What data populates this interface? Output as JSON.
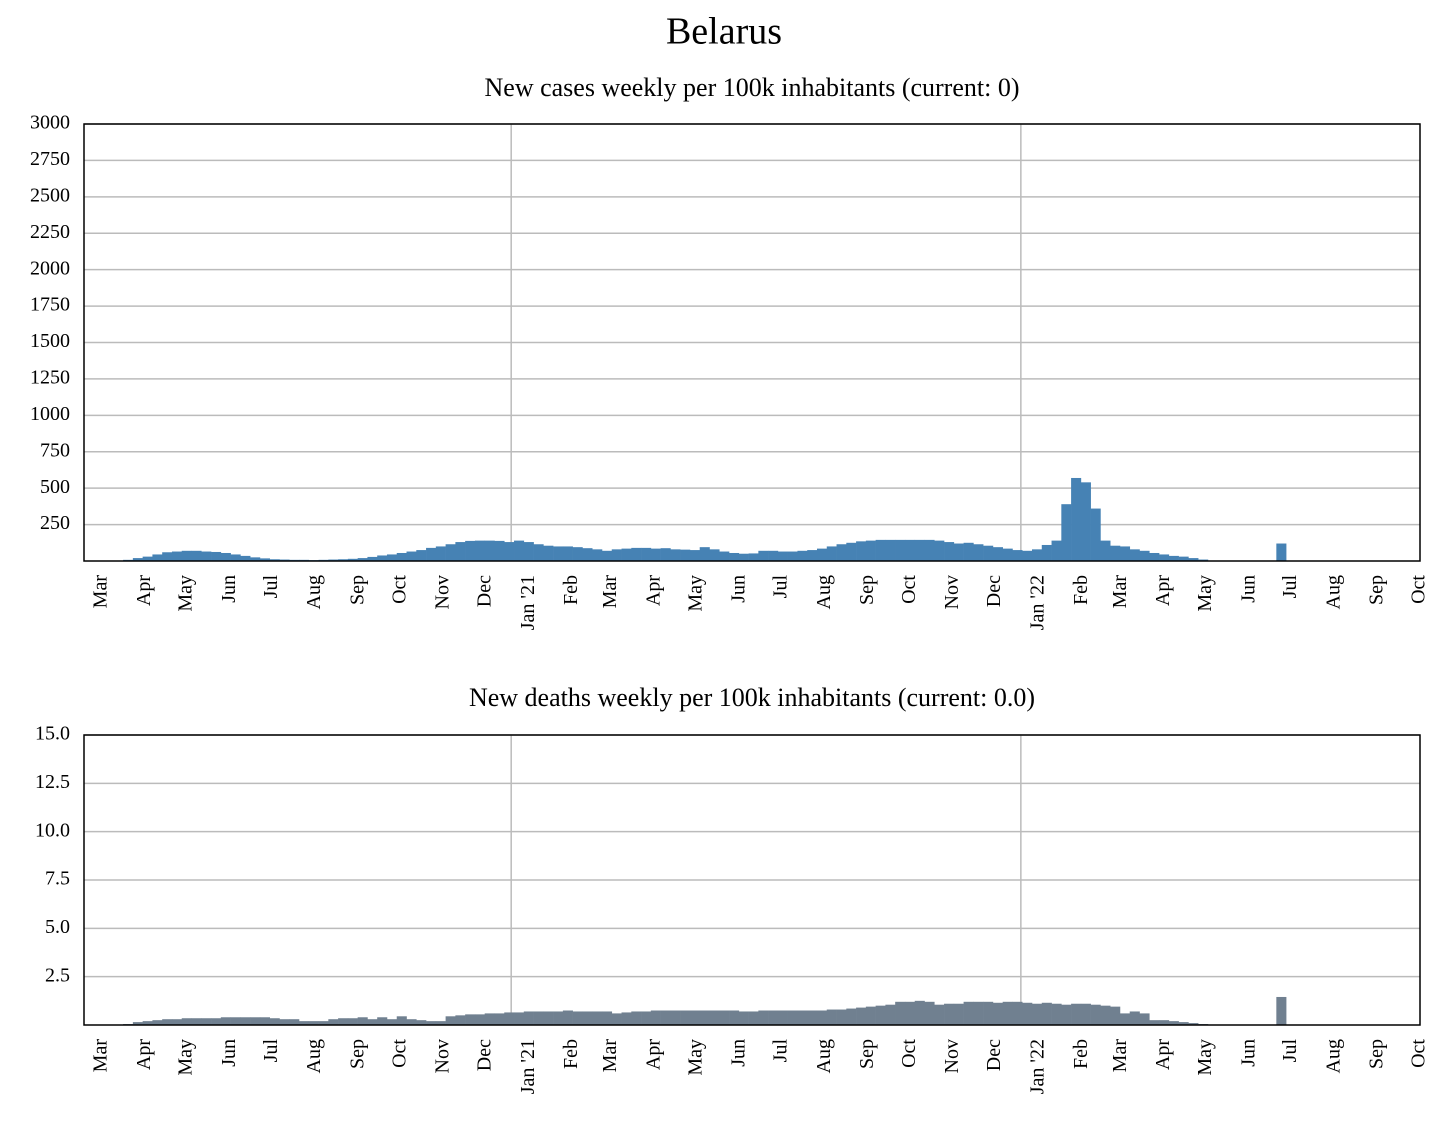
{
  "title": "Belarus",
  "chart_data": [
    {
      "type": "bar",
      "title": "New cases weekly per 100k inhabitants (current: 0)",
      "color": "#4682b4",
      "ylim": [
        0,
        3000
      ],
      "yticks": [
        250,
        500,
        750,
        1000,
        1250,
        1500,
        1750,
        2000,
        2250,
        2500,
        2750,
        3000
      ],
      "grid": true,
      "xlim": [
        0,
        136.7
      ],
      "xticks": [
        {
          "value": 0,
          "label": "Mar"
        },
        {
          "value": 4.43,
          "label": "Apr"
        },
        {
          "value": 8.71,
          "label": "May"
        },
        {
          "value": 13.14,
          "label": "Jun"
        },
        {
          "value": 17.43,
          "label": "Jul"
        },
        {
          "value": 21.86,
          "label": "Aug"
        },
        {
          "value": 26.29,
          "label": "Sep"
        },
        {
          "value": 30.57,
          "label": "Oct"
        },
        {
          "value": 35,
          "label": "Nov"
        },
        {
          "value": 39.29,
          "label": "Dec"
        },
        {
          "value": 43.71,
          "label": "Jan '21"
        },
        {
          "value": 48.14,
          "label": "Feb"
        },
        {
          "value": 52.14,
          "label": "Mar"
        },
        {
          "value": 56.57,
          "label": "Apr"
        },
        {
          "value": 60.86,
          "label": "May"
        },
        {
          "value": 65.29,
          "label": "Jun"
        },
        {
          "value": 69.57,
          "label": "Jul"
        },
        {
          "value": 74,
          "label": "Aug"
        },
        {
          "value": 78.43,
          "label": "Sep"
        },
        {
          "value": 82.71,
          "label": "Oct"
        },
        {
          "value": 87.14,
          "label": "Nov"
        },
        {
          "value": 91.43,
          "label": "Dec"
        },
        {
          "value": 95.86,
          "label": "Jan '22"
        },
        {
          "value": 100.29,
          "label": "Feb"
        },
        {
          "value": 104.29,
          "label": "Mar"
        },
        {
          "value": 108.71,
          "label": "Apr"
        },
        {
          "value": 113,
          "label": "May"
        },
        {
          "value": 117.43,
          "label": "Jun"
        },
        {
          "value": 121.71,
          "label": "Jul"
        },
        {
          "value": 126.14,
          "label": "Aug"
        },
        {
          "value": 130.57,
          "label": "Sep"
        },
        {
          "value": 134.86,
          "label": "Oct"
        }
      ],
      "x": [
        0,
        1,
        2,
        3,
        4,
        5,
        6,
        7,
        8,
        9,
        10,
        11,
        12,
        13,
        14,
        15,
        16,
        17,
        18,
        19,
        20,
        21,
        22,
        23,
        24,
        25,
        26,
        27,
        28,
        29,
        30,
        31,
        32,
        33,
        34,
        35,
        36,
        37,
        38,
        39,
        40,
        41,
        42,
        43,
        44,
        45,
        46,
        47,
        48,
        49,
        50,
        51,
        52,
        53,
        54,
        55,
        56,
        57,
        58,
        59,
        60,
        61,
        62,
        63,
        64,
        65,
        66,
        67,
        68,
        69,
        70,
        71,
        72,
        73,
        74,
        75,
        76,
        77,
        78,
        79,
        80,
        81,
        82,
        83,
        84,
        85,
        86,
        87,
        88,
        89,
        90,
        91,
        92,
        93,
        94,
        95,
        96,
        97,
        98,
        99,
        100,
        101,
        102,
        103,
        104,
        105,
        106,
        107,
        108,
        109,
        110,
        111,
        112,
        113,
        114,
        115,
        116,
        117,
        118,
        119,
        120,
        121,
        122,
        123,
        124,
        125,
        126,
        127,
        128,
        129,
        130,
        131,
        132,
        133,
        134,
        135,
        136
      ],
      "values": [
        0,
        0,
        1,
        3,
        8,
        20,
        30,
        45,
        60,
        65,
        70,
        70,
        65,
        62,
        55,
        45,
        35,
        25,
        18,
        12,
        10,
        8,
        8,
        6,
        8,
        10,
        12,
        15,
        20,
        28,
        38,
        45,
        55,
        65,
        75,
        90,
        100,
        115,
        130,
        138,
        140,
        140,
        138,
        130,
        140,
        130,
        115,
        105,
        100,
        100,
        95,
        88,
        80,
        70,
        80,
        85,
        90,
        90,
        85,
        88,
        80,
        78,
        75,
        95,
        80,
        65,
        55,
        50,
        52,
        70,
        70,
        65,
        65,
        70,
        75,
        85,
        100,
        115,
        125,
        135,
        140,
        145,
        145,
        145,
        145,
        145,
        145,
        140,
        130,
        120,
        125,
        115,
        105,
        95,
        85,
        75,
        70,
        80,
        110,
        140,
        390,
        570,
        540,
        360,
        140,
        105,
        100,
        80,
        70,
        55,
        45,
        35,
        30,
        20,
        10,
        0,
        0,
        0,
        0,
        0,
        0,
        0,
        120,
        0,
        0,
        0,
        0,
        0,
        0,
        0,
        0,
        0,
        0,
        0,
        0,
        0,
        0
      ]
    },
    {
      "type": "bar",
      "title": "New deaths weekly per 100k inhabitants (current: 0.0)",
      "color": "#708090",
      "ylim": [
        0,
        15
      ],
      "yticks": [
        2.5,
        {
          "value": 5,
          "label": "5.0"
        },
        7.5,
        {
          "value": 10,
          "label": "10.0"
        },
        12.5,
        {
          "value": 15,
          "label": "15.0"
        }
      ],
      "grid": true,
      "xlim": [
        0,
        136.7
      ],
      "xticks": [
        {
          "value": 0,
          "label": "Mar"
        },
        {
          "value": 4.43,
          "label": "Apr"
        },
        {
          "value": 8.71,
          "label": "May"
        },
        {
          "value": 13.14,
          "label": "Jun"
        },
        {
          "value": 17.43,
          "label": "Jul"
        },
        {
          "value": 21.86,
          "label": "Aug"
        },
        {
          "value": 26.29,
          "label": "Sep"
        },
        {
          "value": 30.57,
          "label": "Oct"
        },
        {
          "value": 35,
          "label": "Nov"
        },
        {
          "value": 39.29,
          "label": "Dec"
        },
        {
          "value": 43.71,
          "label": "Jan '21"
        },
        {
          "value": 48.14,
          "label": "Feb"
        },
        {
          "value": 52.14,
          "label": "Mar"
        },
        {
          "value": 56.57,
          "label": "Apr"
        },
        {
          "value": 60.86,
          "label": "May"
        },
        {
          "value": 65.29,
          "label": "Jun"
        },
        {
          "value": 69.57,
          "label": "Jul"
        },
        {
          "value": 74,
          "label": "Aug"
        },
        {
          "value": 78.43,
          "label": "Sep"
        },
        {
          "value": 82.71,
          "label": "Oct"
        },
        {
          "value": 87.14,
          "label": "Nov"
        },
        {
          "value": 91.43,
          "label": "Dec"
        },
        {
          "value": 95.86,
          "label": "Jan '22"
        },
        {
          "value": 100.29,
          "label": "Feb"
        },
        {
          "value": 104.29,
          "label": "Mar"
        },
        {
          "value": 108.71,
          "label": "Apr"
        },
        {
          "value": 113,
          "label": "May"
        },
        {
          "value": 117.43,
          "label": "Jun"
        },
        {
          "value": 121.71,
          "label": "Jul"
        },
        {
          "value": 126.14,
          "label": "Aug"
        },
        {
          "value": 130.57,
          "label": "Sep"
        },
        {
          "value": 134.86,
          "label": "Oct"
        }
      ],
      "x": [
        0,
        1,
        2,
        3,
        4,
        5,
        6,
        7,
        8,
        9,
        10,
        11,
        12,
        13,
        14,
        15,
        16,
        17,
        18,
        19,
        20,
        21,
        22,
        23,
        24,
        25,
        26,
        27,
        28,
        29,
        30,
        31,
        32,
        33,
        34,
        35,
        36,
        37,
        38,
        39,
        40,
        41,
        42,
        43,
        44,
        45,
        46,
        47,
        48,
        49,
        50,
        51,
        52,
        53,
        54,
        55,
        56,
        57,
        58,
        59,
        60,
        61,
        62,
        63,
        64,
        65,
        66,
        67,
        68,
        69,
        70,
        71,
        72,
        73,
        74,
        75,
        76,
        77,
        78,
        79,
        80,
        81,
        82,
        83,
        84,
        85,
        86,
        87,
        88,
        89,
        90,
        91,
        92,
        93,
        94,
        95,
        96,
        97,
        98,
        99,
        100,
        101,
        102,
        103,
        104,
        105,
        106,
        107,
        108,
        109,
        110,
        111,
        112,
        113,
        114,
        115,
        116,
        117,
        118,
        119,
        120,
        121,
        122,
        123,
        124,
        125,
        126,
        127,
        128,
        129,
        130,
        131,
        132,
        133,
        134,
        135,
        136
      ],
      "values": [
        0,
        0,
        0,
        0,
        0.05,
        0.15,
        0.2,
        0.25,
        0.3,
        0.3,
        0.35,
        0.35,
        0.35,
        0.35,
        0.4,
        0.4,
        0.4,
        0.4,
        0.4,
        0.35,
        0.3,
        0.3,
        0.2,
        0.2,
        0.2,
        0.3,
        0.35,
        0.35,
        0.4,
        0.3,
        0.4,
        0.3,
        0.45,
        0.3,
        0.25,
        0.2,
        0.2,
        0.45,
        0.5,
        0.55,
        0.55,
        0.6,
        0.6,
        0.65,
        0.65,
        0.7,
        0.7,
        0.7,
        0.7,
        0.75,
        0.7,
        0.7,
        0.7,
        0.7,
        0.6,
        0.65,
        0.7,
        0.7,
        0.75,
        0.75,
        0.75,
        0.75,
        0.75,
        0.75,
        0.75,
        0.75,
        0.75,
        0.7,
        0.7,
        0.75,
        0.75,
        0.75,
        0.75,
        0.75,
        0.75,
        0.75,
        0.8,
        0.8,
        0.85,
        0.9,
        0.95,
        1.0,
        1.05,
        1.2,
        1.2,
        1.25,
        1.2,
        1.05,
        1.1,
        1.1,
        1.2,
        1.2,
        1.2,
        1.15,
        1.2,
        1.2,
        1.15,
        1.1,
        1.15,
        1.1,
        1.05,
        1.1,
        1.1,
        1.05,
        1.0,
        0.95,
        0.6,
        0.7,
        0.6,
        0.25,
        0.25,
        0.2,
        0.15,
        0.1,
        0.05,
        0,
        0,
        0,
        0,
        0,
        0,
        0,
        1.45,
        0,
        0,
        0,
        0,
        0,
        0,
        0,
        0,
        0,
        0,
        0,
        0,
        0,
        0
      ]
    }
  ]
}
